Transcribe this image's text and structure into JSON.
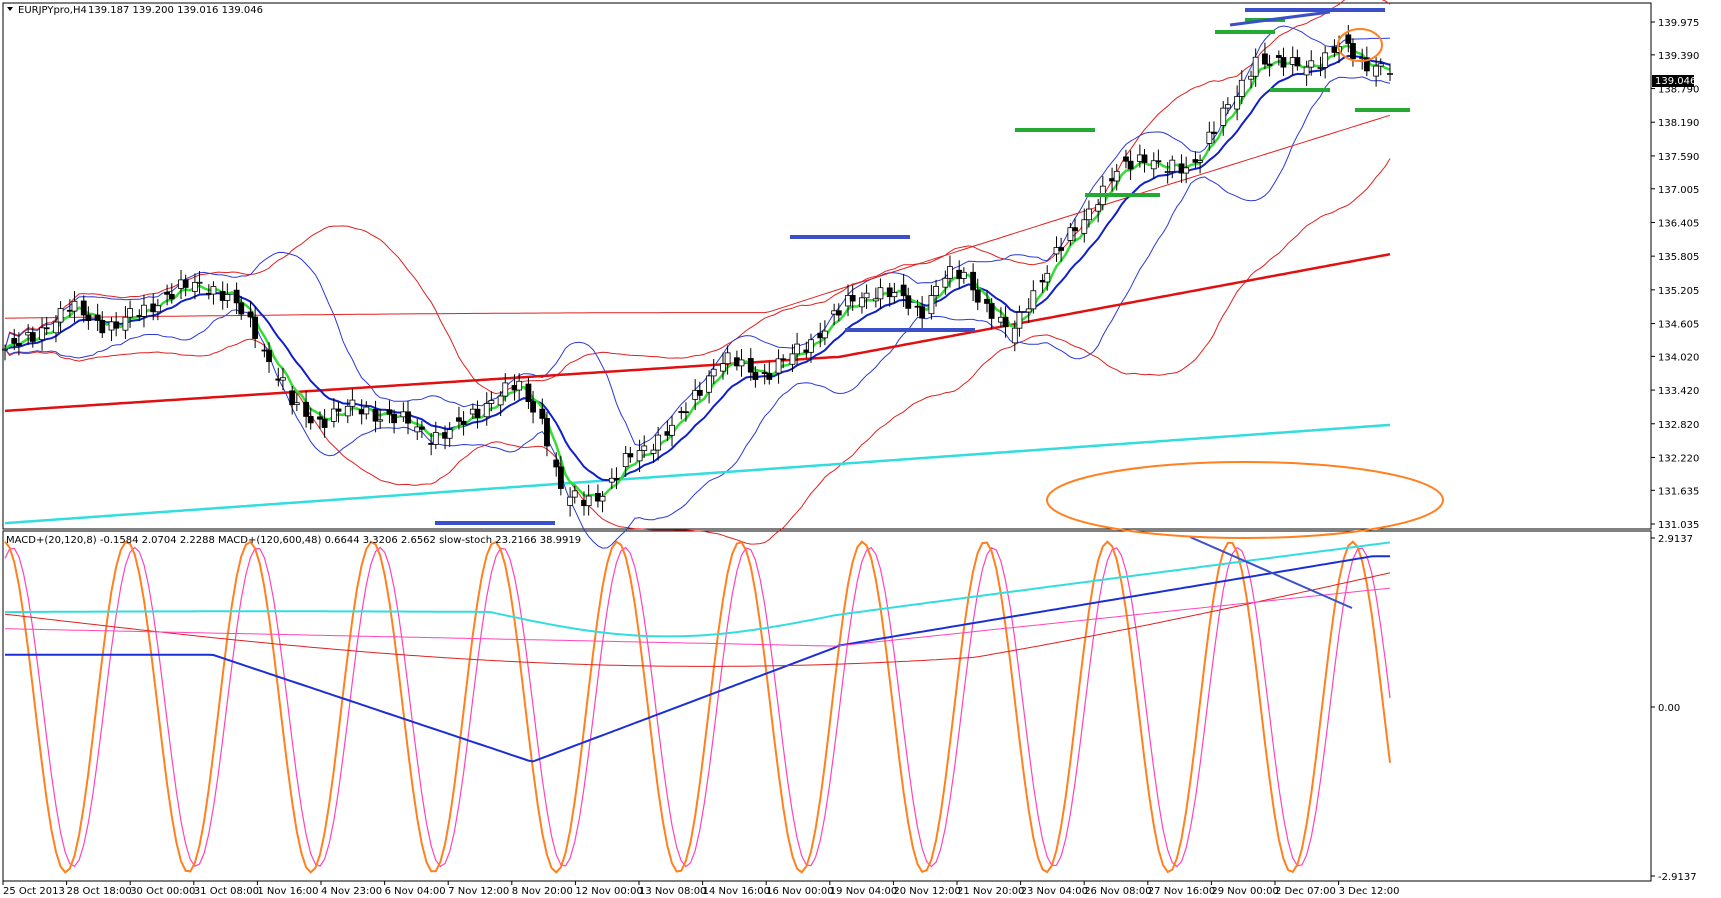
{
  "chart_data": {
    "type": "candlestick",
    "symbol": "EURJPYpro,H4",
    "ohlc_last": "139.187 139.200 139.016 139.046",
    "current_price_label": "139.046",
    "price_ticks": [
      "139.975",
      "139.390",
      "138.790",
      "138.190",
      "137.590",
      "137.005",
      "136.405",
      "135.805",
      "135.205",
      "134.605",
      "134.020",
      "133.420",
      "132.820",
      "132.220",
      "131.635",
      "131.035"
    ],
    "price_range": [
      131.035,
      140.2
    ],
    "indicator_header": "MACD+(20,120,8) -0.1584 2.0704 2.2288  MACD+(120,600,48) 0.6644 3.3206 2.6562  slow-stoch 23.2166 38.9919",
    "indicator_ticks": [
      "2.9137",
      "0.00",
      "-2.9137"
    ],
    "indicator_range": [
      -2.9137,
      2.9137
    ],
    "time_labels": [
      "25 Oct 2013",
      "28 Oct 18:00",
      "30 Oct 00:00",
      "31 Oct 08:00",
      "1 Nov 16:00",
      "4 Nov 23:00",
      "6 Nov 04:00",
      "7 Nov 12:00",
      "8 Nov 20:00",
      "12 Nov 00:00",
      "13 Nov 08:00",
      "14 Nov 16:00",
      "16 Nov 00:00",
      "19 Nov 04:00",
      "20 Nov 12:00",
      "21 Nov 20:00",
      "23 Nov 04:00",
      "26 Nov 08:00",
      "27 Nov 16:00",
      "29 Nov 00:00",
      "2 Dec 07:00",
      "3 Dec 12:00"
    ],
    "close_path": [
      134.15,
      134.3,
      134.6,
      134.9,
      134.7,
      134.5,
      134.8,
      135.1,
      135.2,
      135.3,
      135.1,
      134.6,
      133.8,
      133.1,
      132.9,
      133.0,
      133.1,
      133.0,
      132.8,
      132.6,
      132.7,
      133.0,
      133.3,
      133.5,
      133.0,
      131.4,
      131.5,
      131.7,
      132.2,
      132.5,
      132.8,
      133.4,
      133.9,
      133.9,
      133.7,
      133.9,
      134.3,
      134.7,
      135.0,
      135.2,
      135.1,
      134.8,
      135.4,
      135.5,
      134.9,
      134.3,
      135.2,
      135.8,
      136.3,
      136.9,
      137.4,
      137.6,
      137.3,
      137.4,
      138.0,
      138.5,
      139.4,
      139.2,
      139.2,
      139.3,
      139.6,
      139.2,
      139.05
    ],
    "series": [
      {
        "name": "EURJPY H4 candles",
        "color": "#000000"
      },
      {
        "name": "EMA fast",
        "color": "#33dd33"
      },
      {
        "name": "MA blue",
        "color": "#1020c8"
      },
      {
        "name": "MA red thick",
        "color": "#e01010"
      },
      {
        "name": "MA cyan",
        "color": "#33dddd"
      },
      {
        "name": "Bollinger bands",
        "color": "#2a38d6"
      },
      {
        "name": "Envelopes",
        "color": "#e02020"
      },
      {
        "name": "Stochastic main",
        "color": "#ff8020"
      },
      {
        "name": "Stochastic signal",
        "color": "#ff44bb"
      },
      {
        "name": "MACD fast",
        "color": "#1a2fd6"
      },
      {
        "name": "MACD slow",
        "color": "#33dddd"
      }
    ],
    "annotations": [
      "support/resistance horizontal markers (green)",
      "blue horizontal markers",
      "orange ellipses",
      "blue divergence lines"
    ]
  }
}
